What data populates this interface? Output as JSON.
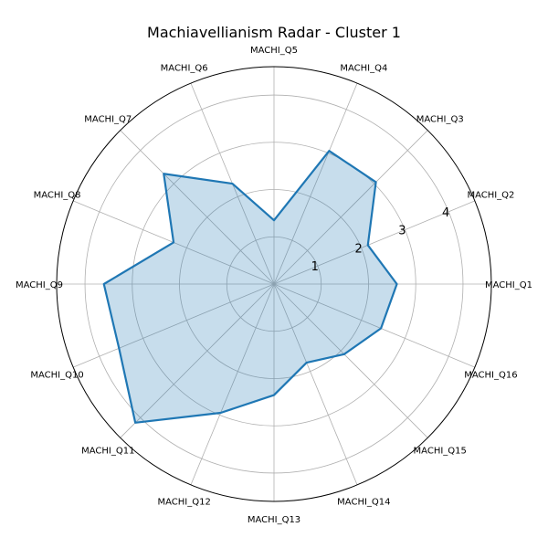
{
  "chart_data": {
    "type": "radar",
    "title": "Machiavellianism Radar - Cluster 1",
    "categories": [
      "MACHI_Q1",
      "MACHI_Q2",
      "MACHI_Q3",
      "MACHI_Q4",
      "MACHI_Q5",
      "MACHI_Q6",
      "MACHI_Q7",
      "MACHI_Q8",
      "MACHI_Q9",
      "MACHI_Q10",
      "MACHI_Q11",
      "MACHI_Q12",
      "MACHI_Q13",
      "MACHI_Q14",
      "MACHI_Q15",
      "MACHI_Q16"
    ],
    "series": [
      {
        "values": [
          2.6,
          2.15,
          3.05,
          3.05,
          1.35,
          2.3,
          3.3,
          2.3,
          3.6,
          3.55,
          4.15,
          2.95,
          2.35,
          1.8,
          2.1,
          2.45
        ]
      }
    ],
    "rlim": [
      0,
      4.6
    ],
    "radial_ticks": [
      1,
      2,
      3,
      4
    ],
    "grid": true,
    "colors": {
      "line": "#1f77b4",
      "fill": "#1f77b4",
      "grid": "#b0b0b0"
    }
  }
}
